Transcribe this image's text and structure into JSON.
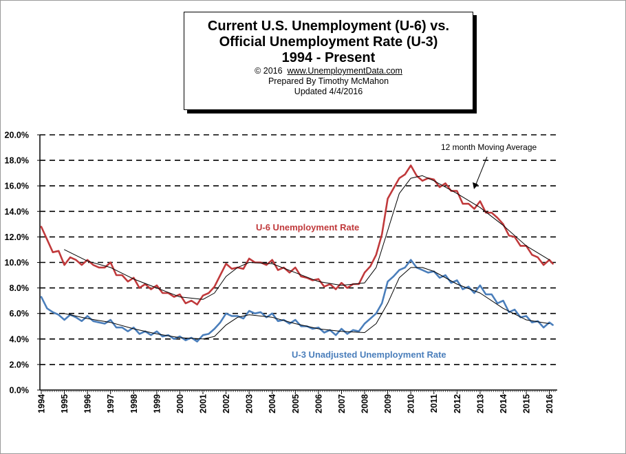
{
  "title": {
    "line1": "Current U.S. Unemployment (U-6) vs.",
    "line2": "Official Unemployment Rate (U-3)",
    "line3": "1994 - Present",
    "copyright_prefix": "© 2016",
    "copyright_link": "www.UnemploymentData.com",
    "prepared": "Prepared  By Timothy  McMahon",
    "updated": "Updated  4/4/2016"
  },
  "chart_data": {
    "type": "line",
    "ylim": [
      0,
      20
    ],
    "xlim": [
      1994,
      2016.25
    ],
    "y_ticks": [
      "0.0%",
      "2.0%",
      "4.0%",
      "6.0%",
      "8.0%",
      "10.0%",
      "12.0%",
      "14.0%",
      "16.0%",
      "18.0%",
      "20.0%"
    ],
    "x_ticks": [
      "1994",
      "1995",
      "1996",
      "1997",
      "1998",
      "1999",
      "2000",
      "2001",
      "2002",
      "2003",
      "2004",
      "2005",
      "2006",
      "2007",
      "2008",
      "2009",
      "2010",
      "2011",
      "2012",
      "2013",
      "2014",
      "2015",
      "2016"
    ],
    "grid": "horizontal dashed",
    "annotations": {
      "u6": "U-6 Unemployment Rate",
      "u3": "U-3  Unadjusted Unemployment Rate",
      "moving_average": "12 month Moving Average"
    },
    "series": [
      {
        "name": "U-6 Unemployment Rate",
        "color": "#c0393b",
        "points": [
          [
            1994.0,
            12.8
          ],
          [
            1994.25,
            11.8
          ],
          [
            1994.5,
            10.8
          ],
          [
            1994.75,
            10.9
          ],
          [
            1995.0,
            9.8
          ],
          [
            1995.25,
            10.4
          ],
          [
            1995.5,
            10.2
          ],
          [
            1995.75,
            9.8
          ],
          [
            1996.0,
            10.2
          ],
          [
            1996.25,
            9.8
          ],
          [
            1996.5,
            9.6
          ],
          [
            1996.75,
            9.6
          ],
          [
            1997.0,
            10.0
          ],
          [
            1997.25,
            9.0
          ],
          [
            1997.5,
            9.0
          ],
          [
            1997.75,
            8.5
          ],
          [
            1998.0,
            8.8
          ],
          [
            1998.25,
            8.0
          ],
          [
            1998.5,
            8.3
          ],
          [
            1998.75,
            7.9
          ],
          [
            1999.0,
            8.2
          ],
          [
            1999.25,
            7.6
          ],
          [
            1999.5,
            7.6
          ],
          [
            1999.75,
            7.3
          ],
          [
            2000.0,
            7.5
          ],
          [
            2000.25,
            6.8
          ],
          [
            2000.5,
            7.0
          ],
          [
            2000.75,
            6.7
          ],
          [
            2001.0,
            7.4
          ],
          [
            2001.25,
            7.6
          ],
          [
            2001.5,
            8.1
          ],
          [
            2001.75,
            9.0
          ],
          [
            2002.0,
            9.9
          ],
          [
            2002.25,
            9.5
          ],
          [
            2002.5,
            9.6
          ],
          [
            2002.75,
            9.5
          ],
          [
            2003.0,
            10.3
          ],
          [
            2003.25,
            10.0
          ],
          [
            2003.5,
            10.0
          ],
          [
            2003.75,
            9.8
          ],
          [
            2004.0,
            10.2
          ],
          [
            2004.25,
            9.4
          ],
          [
            2004.5,
            9.6
          ],
          [
            2004.75,
            9.2
          ],
          [
            2005.0,
            9.6
          ],
          [
            2005.25,
            8.9
          ],
          [
            2005.5,
            8.8
          ],
          [
            2005.75,
            8.6
          ],
          [
            2006.0,
            8.7
          ],
          [
            2006.25,
            8.1
          ],
          [
            2006.5,
            8.3
          ],
          [
            2006.75,
            7.9
          ],
          [
            2007.0,
            8.4
          ],
          [
            2007.25,
            8.0
          ],
          [
            2007.5,
            8.3
          ],
          [
            2007.75,
            8.3
          ],
          [
            2008.0,
            9.2
          ],
          [
            2008.25,
            9.7
          ],
          [
            2008.5,
            10.6
          ],
          [
            2008.75,
            12.2
          ],
          [
            2009.0,
            15.0
          ],
          [
            2009.25,
            15.8
          ],
          [
            2009.5,
            16.6
          ],
          [
            2009.75,
            16.9
          ],
          [
            2010.0,
            17.6
          ],
          [
            2010.25,
            16.8
          ],
          [
            2010.5,
            16.4
          ],
          [
            2010.75,
            16.6
          ],
          [
            2011.0,
            16.5
          ],
          [
            2011.25,
            15.9
          ],
          [
            2011.5,
            16.2
          ],
          [
            2011.75,
            15.6
          ],
          [
            2012.0,
            15.6
          ],
          [
            2012.25,
            14.6
          ],
          [
            2012.5,
            14.6
          ],
          [
            2012.75,
            14.2
          ],
          [
            2013.0,
            14.8
          ],
          [
            2013.25,
            13.9
          ],
          [
            2013.5,
            13.9
          ],
          [
            2013.75,
            13.5
          ],
          [
            2014.0,
            13.0
          ],
          [
            2014.25,
            12.1
          ],
          [
            2014.5,
            12.0
          ],
          [
            2014.75,
            11.3
          ],
          [
            2015.0,
            11.3
          ],
          [
            2015.25,
            10.6
          ],
          [
            2015.5,
            10.4
          ],
          [
            2015.75,
            9.8
          ],
          [
            2016.0,
            10.2
          ],
          [
            2016.15,
            9.9
          ]
        ]
      },
      {
        "name": "U-3 Unadjusted Unemployment Rate",
        "color": "#4a7ebb",
        "points": [
          [
            1994.0,
            7.3
          ],
          [
            1994.25,
            6.4
          ],
          [
            1994.5,
            6.1
          ],
          [
            1994.75,
            5.9
          ],
          [
            1995.0,
            5.5
          ],
          [
            1995.25,
            5.9
          ],
          [
            1995.5,
            5.7
          ],
          [
            1995.75,
            5.4
          ],
          [
            1996.0,
            5.8
          ],
          [
            1996.25,
            5.4
          ],
          [
            1996.5,
            5.3
          ],
          [
            1996.75,
            5.2
          ],
          [
            1997.0,
            5.5
          ],
          [
            1997.25,
            4.9
          ],
          [
            1997.5,
            4.9
          ],
          [
            1997.75,
            4.6
          ],
          [
            1998.0,
            4.9
          ],
          [
            1998.25,
            4.4
          ],
          [
            1998.5,
            4.6
          ],
          [
            1998.75,
            4.3
          ],
          [
            1999.0,
            4.6
          ],
          [
            1999.25,
            4.2
          ],
          [
            1999.5,
            4.3
          ],
          [
            1999.75,
            4.0
          ],
          [
            2000.0,
            4.2
          ],
          [
            2000.25,
            3.9
          ],
          [
            2000.5,
            4.1
          ],
          [
            2000.75,
            3.8
          ],
          [
            2001.0,
            4.3
          ],
          [
            2001.25,
            4.4
          ],
          [
            2001.5,
            4.8
          ],
          [
            2001.75,
            5.3
          ],
          [
            2002.0,
            6.0
          ],
          [
            2002.25,
            5.8
          ],
          [
            2002.5,
            5.8
          ],
          [
            2002.75,
            5.6
          ],
          [
            2003.0,
            6.2
          ],
          [
            2003.25,
            6.0
          ],
          [
            2003.5,
            6.1
          ],
          [
            2003.75,
            5.7
          ],
          [
            2004.0,
            6.0
          ],
          [
            2004.25,
            5.4
          ],
          [
            2004.5,
            5.5
          ],
          [
            2004.75,
            5.2
          ],
          [
            2005.0,
            5.5
          ],
          [
            2005.25,
            5.0
          ],
          [
            2005.5,
            5.0
          ],
          [
            2005.75,
            4.8
          ],
          [
            2006.0,
            4.9
          ],
          [
            2006.25,
            4.5
          ],
          [
            2006.5,
            4.7
          ],
          [
            2006.75,
            4.3
          ],
          [
            2007.0,
            4.8
          ],
          [
            2007.25,
            4.4
          ],
          [
            2007.5,
            4.7
          ],
          [
            2007.75,
            4.6
          ],
          [
            2008.0,
            5.2
          ],
          [
            2008.25,
            5.6
          ],
          [
            2008.5,
            6.0
          ],
          [
            2008.75,
            6.8
          ],
          [
            2009.0,
            8.5
          ],
          [
            2009.25,
            8.9
          ],
          [
            2009.5,
            9.4
          ],
          [
            2009.75,
            9.6
          ],
          [
            2010.0,
            10.2
          ],
          [
            2010.25,
            9.6
          ],
          [
            2010.5,
            9.4
          ],
          [
            2010.75,
            9.2
          ],
          [
            2011.0,
            9.3
          ],
          [
            2011.25,
            8.8
          ],
          [
            2011.5,
            9.0
          ],
          [
            2011.75,
            8.4
          ],
          [
            2012.0,
            8.6
          ],
          [
            2012.25,
            7.9
          ],
          [
            2012.5,
            8.1
          ],
          [
            2012.75,
            7.6
          ],
          [
            2013.0,
            8.2
          ],
          [
            2013.25,
            7.5
          ],
          [
            2013.5,
            7.5
          ],
          [
            2013.75,
            6.8
          ],
          [
            2014.0,
            7.0
          ],
          [
            2014.25,
            6.1
          ],
          [
            2014.5,
            6.3
          ],
          [
            2014.75,
            5.7
          ],
          [
            2015.0,
            5.8
          ],
          [
            2015.25,
            5.3
          ],
          [
            2015.5,
            5.4
          ],
          [
            2015.75,
            4.9
          ],
          [
            2016.0,
            5.3
          ],
          [
            2016.15,
            5.1
          ]
        ]
      },
      {
        "name": "12 month Moving Average",
        "color": "#000000",
        "points": [
          [
            1995.0,
            11.0
          ],
          [
            1996.0,
            10.1
          ],
          [
            1997.0,
            9.6
          ],
          [
            1998.0,
            8.7
          ],
          [
            1999.0,
            8.0
          ],
          [
            2000.0,
            7.3
          ],
          [
            2001.0,
            7.1
          ],
          [
            2001.5,
            7.6
          ],
          [
            2002.0,
            8.9
          ],
          [
            2002.5,
            9.6
          ],
          [
            2003.0,
            10.0
          ],
          [
            2004.0,
            9.9
          ],
          [
            2005.0,
            9.2
          ],
          [
            2006.0,
            8.5
          ],
          [
            2007.0,
            8.2
          ],
          [
            2008.0,
            8.4
          ],
          [
            2008.5,
            9.6
          ],
          [
            2009.0,
            12.5
          ],
          [
            2009.5,
            15.4
          ],
          [
            2010.0,
            16.6
          ],
          [
            2010.5,
            16.8
          ],
          [
            2011.0,
            16.4
          ],
          [
            2012.0,
            15.4
          ],
          [
            2013.0,
            14.3
          ],
          [
            2014.0,
            12.9
          ],
          [
            2015.0,
            11.3
          ],
          [
            2016.0,
            10.2
          ]
        ]
      },
      {
        "name": "12 month Moving Average",
        "color": "#000000",
        "points": [
          [
            1995.0,
            6.0
          ],
          [
            1996.0,
            5.6
          ],
          [
            1997.0,
            5.3
          ],
          [
            1998.0,
            4.8
          ],
          [
            1999.0,
            4.4
          ],
          [
            2000.0,
            4.1
          ],
          [
            2001.0,
            4.0
          ],
          [
            2001.5,
            4.2
          ],
          [
            2002.0,
            5.1
          ],
          [
            2002.5,
            5.7
          ],
          [
            2003.0,
            5.9
          ],
          [
            2004.0,
            5.7
          ],
          [
            2005.0,
            5.2
          ],
          [
            2006.0,
            4.8
          ],
          [
            2007.0,
            4.6
          ],
          [
            2008.0,
            4.5
          ],
          [
            2008.5,
            5.2
          ],
          [
            2009.0,
            6.8
          ],
          [
            2009.5,
            8.8
          ],
          [
            2010.0,
            9.6
          ],
          [
            2010.5,
            9.6
          ],
          [
            2011.0,
            9.3
          ],
          [
            2012.0,
            8.3
          ],
          [
            2013.0,
            7.6
          ],
          [
            2014.0,
            6.4
          ],
          [
            2015.0,
            5.5
          ],
          [
            2016.0,
            5.2
          ]
        ]
      }
    ]
  }
}
